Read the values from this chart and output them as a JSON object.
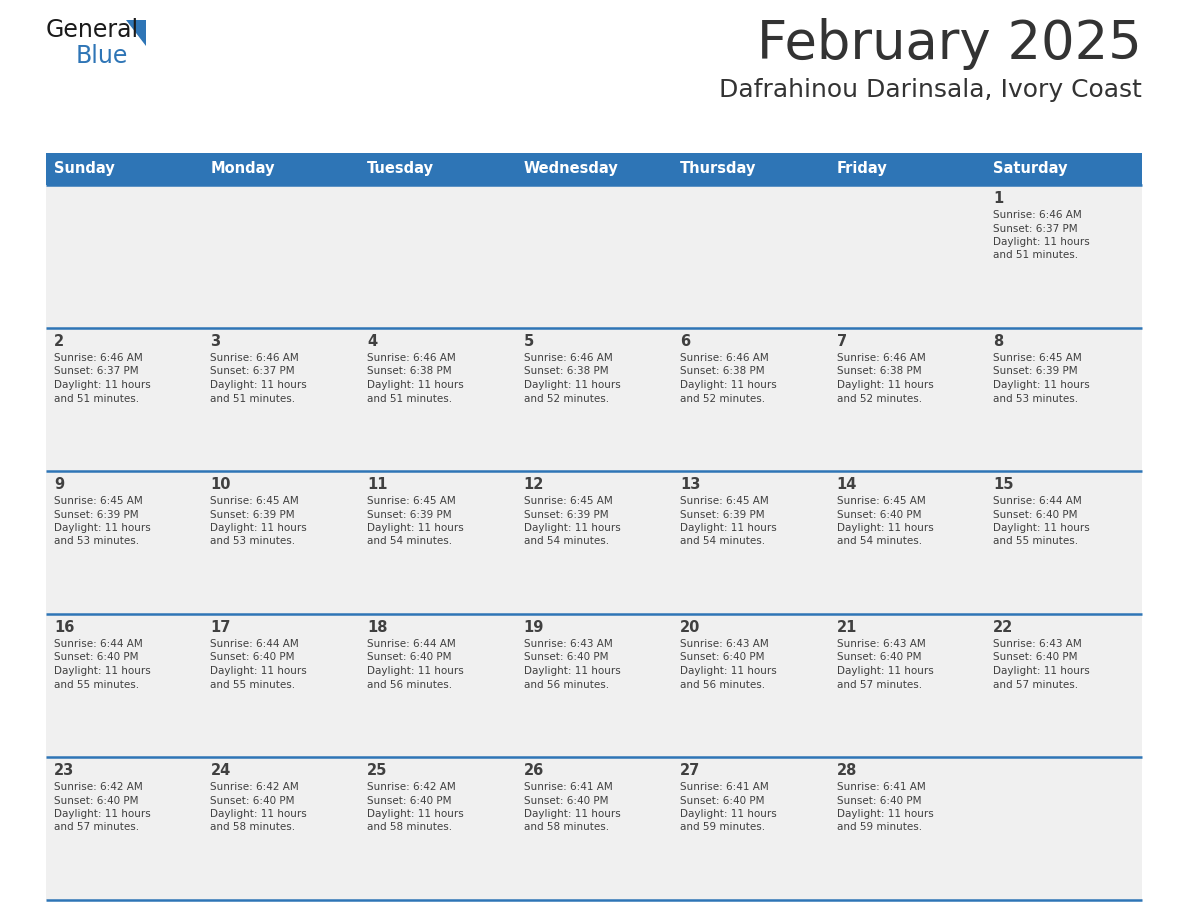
{
  "title": "February 2025",
  "subtitle": "Dafrahinou Darinsala, Ivory Coast",
  "header_color": "#2E75B6",
  "header_text_color": "#FFFFFF",
  "cell_bg_color": "#F0F0F0",
  "border_color": "#2E75B6",
  "text_color": "#404040",
  "days_of_week": [
    "Sunday",
    "Monday",
    "Tuesday",
    "Wednesday",
    "Thursday",
    "Friday",
    "Saturday"
  ],
  "calendar_data": [
    [
      null,
      null,
      null,
      null,
      null,
      null,
      {
        "day": 1,
        "sunrise": "6:46 AM",
        "sunset": "6:37 PM",
        "daylight": "11 hours and 51 minutes."
      }
    ],
    [
      {
        "day": 2,
        "sunrise": "6:46 AM",
        "sunset": "6:37 PM",
        "daylight": "11 hours and 51 minutes."
      },
      {
        "day": 3,
        "sunrise": "6:46 AM",
        "sunset": "6:37 PM",
        "daylight": "11 hours and 51 minutes."
      },
      {
        "day": 4,
        "sunrise": "6:46 AM",
        "sunset": "6:38 PM",
        "daylight": "11 hours and 51 minutes."
      },
      {
        "day": 5,
        "sunrise": "6:46 AM",
        "sunset": "6:38 PM",
        "daylight": "11 hours and 52 minutes."
      },
      {
        "day": 6,
        "sunrise": "6:46 AM",
        "sunset": "6:38 PM",
        "daylight": "11 hours and 52 minutes."
      },
      {
        "day": 7,
        "sunrise": "6:46 AM",
        "sunset": "6:38 PM",
        "daylight": "11 hours and 52 minutes."
      },
      {
        "day": 8,
        "sunrise": "6:45 AM",
        "sunset": "6:39 PM",
        "daylight": "11 hours and 53 minutes."
      }
    ],
    [
      {
        "day": 9,
        "sunrise": "6:45 AM",
        "sunset": "6:39 PM",
        "daylight": "11 hours and 53 minutes."
      },
      {
        "day": 10,
        "sunrise": "6:45 AM",
        "sunset": "6:39 PM",
        "daylight": "11 hours and 53 minutes."
      },
      {
        "day": 11,
        "sunrise": "6:45 AM",
        "sunset": "6:39 PM",
        "daylight": "11 hours and 54 minutes."
      },
      {
        "day": 12,
        "sunrise": "6:45 AM",
        "sunset": "6:39 PM",
        "daylight": "11 hours and 54 minutes."
      },
      {
        "day": 13,
        "sunrise": "6:45 AM",
        "sunset": "6:39 PM",
        "daylight": "11 hours and 54 minutes."
      },
      {
        "day": 14,
        "sunrise": "6:45 AM",
        "sunset": "6:40 PM",
        "daylight": "11 hours and 54 minutes."
      },
      {
        "day": 15,
        "sunrise": "6:44 AM",
        "sunset": "6:40 PM",
        "daylight": "11 hours and 55 minutes."
      }
    ],
    [
      {
        "day": 16,
        "sunrise": "6:44 AM",
        "sunset": "6:40 PM",
        "daylight": "11 hours and 55 minutes."
      },
      {
        "day": 17,
        "sunrise": "6:44 AM",
        "sunset": "6:40 PM",
        "daylight": "11 hours and 55 minutes."
      },
      {
        "day": 18,
        "sunrise": "6:44 AM",
        "sunset": "6:40 PM",
        "daylight": "11 hours and 56 minutes."
      },
      {
        "day": 19,
        "sunrise": "6:43 AM",
        "sunset": "6:40 PM",
        "daylight": "11 hours and 56 minutes."
      },
      {
        "day": 20,
        "sunrise": "6:43 AM",
        "sunset": "6:40 PM",
        "daylight": "11 hours and 56 minutes."
      },
      {
        "day": 21,
        "sunrise": "6:43 AM",
        "sunset": "6:40 PM",
        "daylight": "11 hours and 57 minutes."
      },
      {
        "day": 22,
        "sunrise": "6:43 AM",
        "sunset": "6:40 PM",
        "daylight": "11 hours and 57 minutes."
      }
    ],
    [
      {
        "day": 23,
        "sunrise": "6:42 AM",
        "sunset": "6:40 PM",
        "daylight": "11 hours and 57 minutes."
      },
      {
        "day": 24,
        "sunrise": "6:42 AM",
        "sunset": "6:40 PM",
        "daylight": "11 hours and 58 minutes."
      },
      {
        "day": 25,
        "sunrise": "6:42 AM",
        "sunset": "6:40 PM",
        "daylight": "11 hours and 58 minutes."
      },
      {
        "day": 26,
        "sunrise": "6:41 AM",
        "sunset": "6:40 PM",
        "daylight": "11 hours and 58 minutes."
      },
      {
        "day": 27,
        "sunrise": "6:41 AM",
        "sunset": "6:40 PM",
        "daylight": "11 hours and 59 minutes."
      },
      {
        "day": 28,
        "sunrise": "6:41 AM",
        "sunset": "6:40 PM",
        "daylight": "11 hours and 59 minutes."
      },
      null
    ]
  ]
}
